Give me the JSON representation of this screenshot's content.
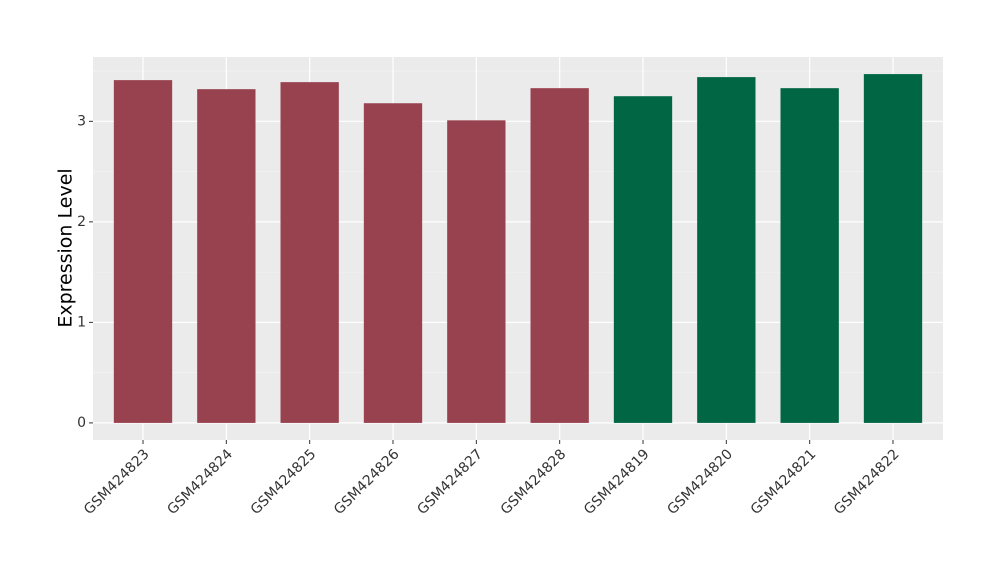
{
  "chart_data": {
    "type": "bar",
    "y_label": "Expression Level",
    "categories": [
      "GSM424823",
      "GSM424824",
      "GSM424825",
      "GSM424826",
      "GSM424827",
      "GSM424828",
      "GSM424819",
      "GSM424820",
      "GSM424821",
      "GSM424822"
    ],
    "values": [
      3.41,
      3.32,
      3.39,
      3.18,
      3.01,
      3.33,
      3.25,
      3.44,
      3.33,
      3.47
    ],
    "colors": [
      "#99424f",
      "#99424f",
      "#99424f",
      "#99424f",
      "#99424f",
      "#99424f",
      "#006643",
      "#006643",
      "#006643",
      "#006643"
    ],
    "ylim": [
      -0.17,
      3.64
    ],
    "yticks": [
      0,
      1,
      2,
      3
    ],
    "grid": true
  }
}
